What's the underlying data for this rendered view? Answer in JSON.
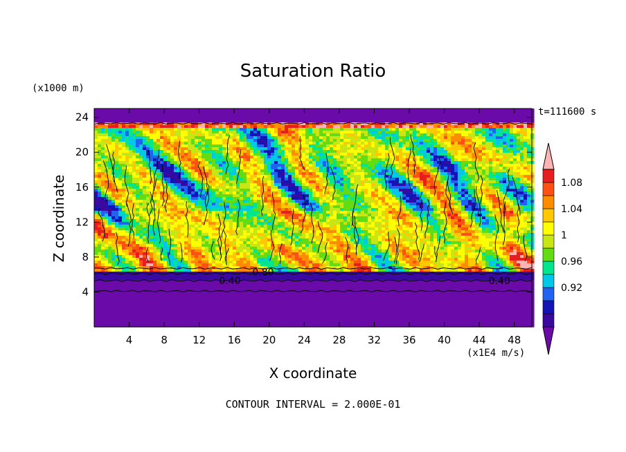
{
  "chart_data": {
    "type": "heatmap",
    "title": "Saturation Ratio",
    "xlabel": "X coordinate",
    "ylabel": "Z coordinate",
    "x_unit_label": "(x1E4 m/s)",
    "y_unit_label": "(x1000 m)",
    "time_label": "t=111600 s",
    "xlim": [
      0,
      50
    ],
    "ylim": [
      0,
      25
    ],
    "x_ticks": [
      4,
      8,
      12,
      16,
      20,
      24,
      28,
      32,
      36,
      40,
      44,
      48
    ],
    "y_ticks": [
      4,
      8,
      12,
      16,
      20,
      24
    ],
    "colorbar_labels": [
      "1.08",
      "1.04",
      "1",
      "0.96",
      "0.92"
    ],
    "colorbar_colors": [
      "#6a0aa8",
      "#3a0aa0",
      "#1414b4",
      "#1e64f0",
      "#00c8e6",
      "#00e68c",
      "#64dc14",
      "#c8e614",
      "#ffff00",
      "#ffc800",
      "#ff8c00",
      "#ff5014",
      "#e61e1e",
      "#ffb4b4"
    ],
    "contour_labels": [
      {
        "text": "0.80",
        "x": 19.3,
        "z": 6.3
      },
      {
        "text": "0.40",
        "x": 15.5,
        "z": 5.3
      },
      {
        "text": "0.40",
        "x": 46.3,
        "z": 5.3
      }
    ],
    "footer": "CONTOUR INTERVAL = 2.000E-01"
  }
}
